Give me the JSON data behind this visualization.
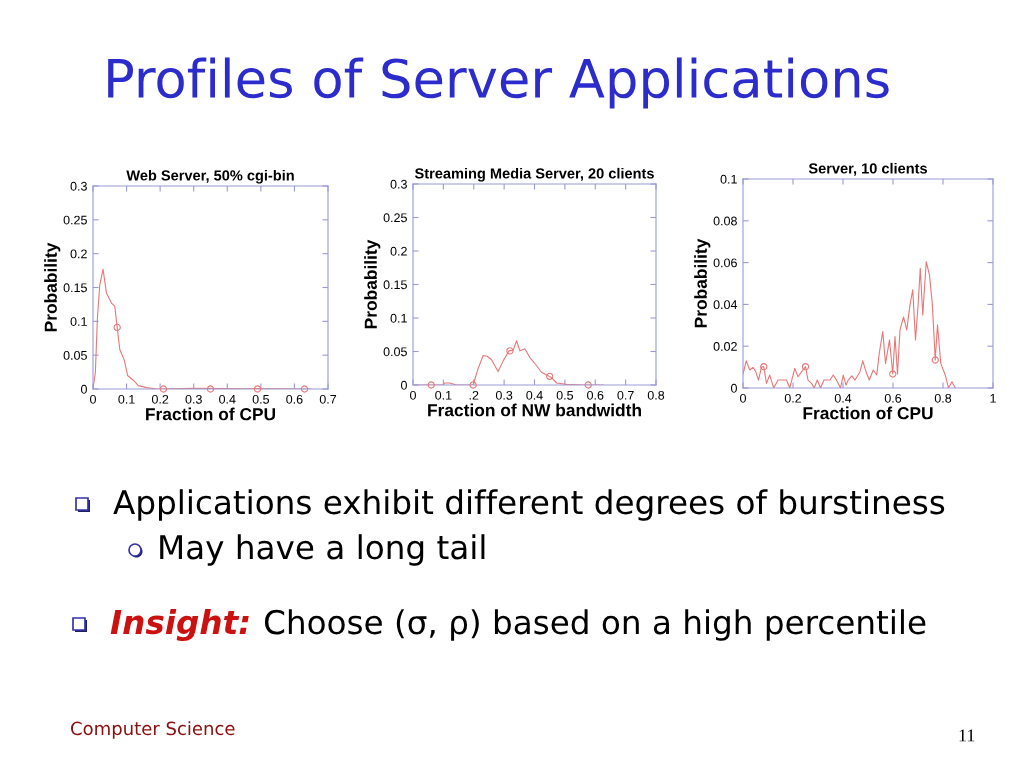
{
  "chart_data": [
    {
      "type": "other",
      "title": "Profiles of Server Applications"
    },
    {
      "type": "line",
      "title": "Web Server, 50% cgi-bin",
      "xlabel": "Fraction of CPU",
      "ylabel": "Probability",
      "series": [
        {
          "type": "line",
          "color": "#e87878",
          "x": [
            0,
            0.007,
            0.013,
            0.02,
            0.03,
            0.04,
            0.055,
            0.065,
            0.072,
            0.08,
            0.093,
            0.103,
            0.12,
            0.135,
            0.16,
            0.19,
            0.3,
            0.65
          ],
          "values": [
            0,
            0.024,
            0.103,
            0.153,
            0.177,
            0.142,
            0.127,
            0.122,
            0.091,
            0.058,
            0.043,
            0.02,
            0.013,
            0.005,
            0.002,
            0,
            0.001,
            0
          ]
        },
        {
          "type": "scatter",
          "marker": "circle",
          "color": "#e87878",
          "x": [
            0.072,
            0.21,
            0.35,
            0.49,
            0.63
          ],
          "values": [
            0.091,
            0,
            0,
            0,
            0
          ]
        }
      ],
      "xlim": [
        0,
        0.7
      ],
      "ylim": [
        0,
        0.3
      ],
      "xticks": [
        0,
        0.1,
        0.2,
        0.3,
        0.4,
        0.5,
        0.6,
        0.7
      ],
      "yticks": [
        0,
        0.05,
        0.1,
        0.15,
        0.2,
        0.25,
        0.3
      ]
    },
    {
      "type": "line",
      "title": "Streaming Media Server, 20 clients",
      "xlabel": "Fraction of NW bandwidth",
      "ylabel": "Probability",
      "series": [
        {
          "type": "line",
          "color": "#e87878",
          "x": [
            0,
            0.06,
            0.1,
            0.104,
            0.121,
            0.143,
            0.198,
            0.214,
            0.231,
            0.244,
            0.258,
            0.28,
            0.297,
            0.316,
            0.33,
            0.341,
            0.352,
            0.368,
            0.385,
            0.403,
            0.423,
            0.44,
            0.456,
            0.473,
            0.505,
            0.56,
            0.626
          ],
          "values": [
            0,
            0,
            0,
            0.003,
            0.003,
            0,
            0,
            0.024,
            0.044,
            0.043,
            0.038,
            0.02,
            0.036,
            0.051,
            0.052,
            0.066,
            0.051,
            0.054,
            0.041,
            0.031,
            0.019,
            0.015,
            0.011,
            0.003,
            0.001,
            0,
            0
          ]
        },
        {
          "type": "scatter",
          "marker": "circle",
          "color": "#e87878",
          "x": [
            0.06,
            0.198,
            0.319,
            0.45,
            0.577
          ],
          "values": [
            0,
            0,
            0.051,
            0.013,
            0
          ]
        }
      ],
      "xlim": [
        0,
        0.8
      ],
      "ylim": [
        0,
        0.3
      ],
      "xticks": [
        0,
        0.1,
        {
          "value": 0.2,
          "label": ".2"
        },
        0.3,
        0.4,
        0.5,
        0.6,
        0.7,
        0.8
      ],
      "yticks": [
        0,
        0.05,
        0.1,
        0.15,
        0.2,
        0.25,
        0.3
      ]
    },
    {
      "type": "line",
      "title": "Server, 10 clients",
      "xlabel": "Fraction of CPU",
      "ylabel": "Probability",
      "series": [
        {
          "type": "line",
          "color": "#e87878",
          "x": [
            0,
            0.013,
            0.027,
            0.04,
            0.051,
            0.062,
            0.074,
            0.083,
            0.094,
            0.107,
            0.123,
            0.14,
            0.174,
            0.187,
            0.207,
            0.22,
            0.234,
            0.25,
            0.26,
            0.274,
            0.285,
            0.297,
            0.31,
            0.324,
            0.348,
            0.361,
            0.374,
            0.39,
            0.401,
            0.412,
            0.421,
            0.435,
            0.448,
            0.468,
            0.479,
            0.492,
            0.505,
            0.521,
            0.535,
            0.545,
            0.559,
            0.57,
            0.586,
            0.599,
            0.608,
            0.618,
            0.628,
            0.642,
            0.655,
            0.668,
            0.679,
            0.69,
            0.7,
            0.709,
            0.719,
            0.733,
            0.746,
            0.757,
            0.769,
            0.778,
            0.791,
            0.809,
            0.822,
            0.836,
            0.849
          ],
          "values": [
            0.0067,
            0.013,
            0.0086,
            0.0099,
            0.0078,
            0.0038,
            0.01,
            0.0102,
            0.0022,
            0.0062,
            0,
            0.0038,
            0.0038,
            0,
            0.0094,
            0.0054,
            0.0077,
            0.0102,
            0.0038,
            0.0022,
            0,
            0.0038,
            0,
            0.0038,
            0.0038,
            0.0062,
            0.0038,
            0,
            0.0062,
            0.0014,
            0.0038,
            0.0058,
            0.0038,
            0.0078,
            0.013,
            0.0078,
            0.0038,
            0.0086,
            0.0062,
            0.0166,
            0.027,
            0.0118,
            0.023,
            0.0067,
            0.0246,
            0.0067,
            0.0278,
            0.034,
            0.0278,
            0.0398,
            0.047,
            0.023,
            0.039,
            0.0573,
            0.035,
            0.0605,
            0.054,
            0.0406,
            0.0134,
            0.0302,
            0.0118,
            0.0062,
            0,
            0.003,
            0
          ]
        },
        {
          "type": "scatter",
          "marker": "circle",
          "color": "#e87878",
          "x": [
            0.083,
            0.25,
            0.599,
            0.769
          ],
          "values": [
            0.0102,
            0.0102,
            0.0067,
            0.0134
          ]
        }
      ],
      "xlim": [
        0,
        1
      ],
      "ylim": [
        0,
        0.1
      ],
      "xticks": [
        0,
        0.2,
        0.4,
        0.6,
        0.8,
        1
      ],
      "yticks": [
        0,
        0.02,
        0.04,
        0.06,
        0.08,
        0.1
      ]
    },
    {
      "type": "other",
      "annotations": [
        "Applications exhibit different degrees of burstiness",
        "May have a long tail",
        "Insight:",
        "Choose (σ, ρ) based on a high percentile",
        "Computer Science",
        "11"
      ]
    }
  ]
}
